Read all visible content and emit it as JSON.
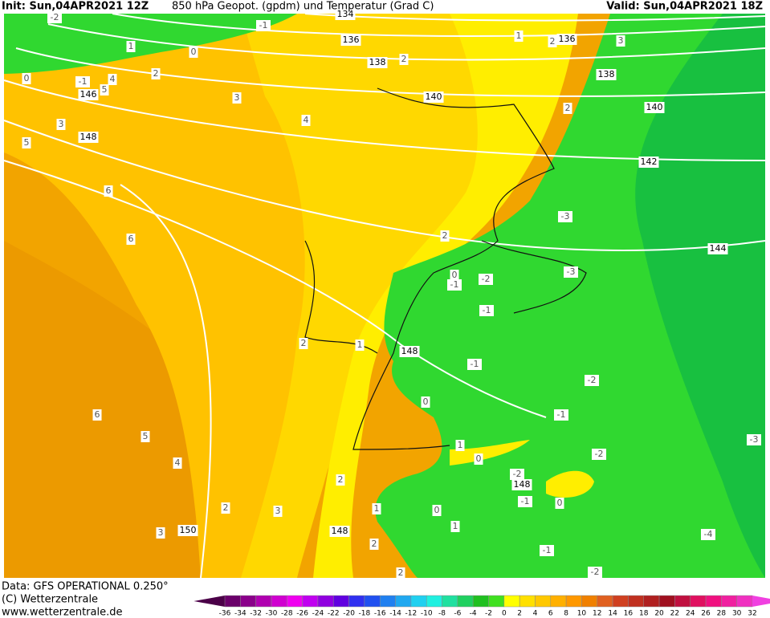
{
  "header": {
    "init": "Init: Sun,04APR2021 12Z",
    "title": "850 hPa Geopot. (gpdm) und Temperatur (Grad C)",
    "valid": "Valid: Sun,04APR2021 18Z"
  },
  "footer": {
    "data": "Data: GFS OPERATIONAL 0.250°",
    "copyright": "(C) Wetterzentrale",
    "url": "www.wetterzentrale.de"
  },
  "geopotential_labels": [
    134,
    136,
    136,
    138,
    138,
    140,
    140,
    142,
    144,
    146,
    148,
    148,
    148,
    148,
    150
  ],
  "temperature_labels": [
    -2,
    -1,
    1,
    0,
    2,
    1,
    3,
    2,
    2,
    0,
    -1,
    4,
    5,
    3,
    4,
    2,
    3,
    5,
    6,
    6,
    -3,
    2,
    0,
    -1,
    -2,
    -3,
    -1,
    2,
    1,
    -1,
    -2,
    0,
    6,
    -1,
    5,
    1,
    0,
    -2,
    -3,
    4,
    -2,
    2,
    -1,
    0,
    2,
    3,
    1,
    0,
    1,
    3,
    -4,
    2,
    -1,
    2,
    -2
  ],
  "colorbar": {
    "ticks": [
      -36,
      -34,
      -32,
      -30,
      -28,
      -26,
      -24,
      -22,
      -20,
      -18,
      -16,
      -14,
      -12,
      -10,
      -8,
      -6,
      -4,
      -2,
      0,
      2,
      4,
      6,
      8,
      10,
      12,
      14,
      16,
      18,
      20,
      22,
      24,
      26,
      28,
      30,
      32
    ],
    "colors": [
      "#4b0048",
      "#6a006a",
      "#8a008a",
      "#b000b0",
      "#d000d0",
      "#f000f0",
      "#c000f0",
      "#9000e0",
      "#6000e0",
      "#3030f0",
      "#2050f0",
      "#2080f0",
      "#20a8f0",
      "#20d0f0",
      "#20f0e0",
      "#20e0a0",
      "#20d060",
      "#20c020",
      "#40e020",
      "#ffff00",
      "#ffe000",
      "#ffc800",
      "#ffb000",
      "#ff9800",
      "#f08000",
      "#e06020",
      "#d04020",
      "#c03020",
      "#b02020",
      "#a01020",
      "#c01040",
      "#e01060",
      "#f01080",
      "#f020a0",
      "#f030c0",
      "#f040e0"
    ]
  }
}
